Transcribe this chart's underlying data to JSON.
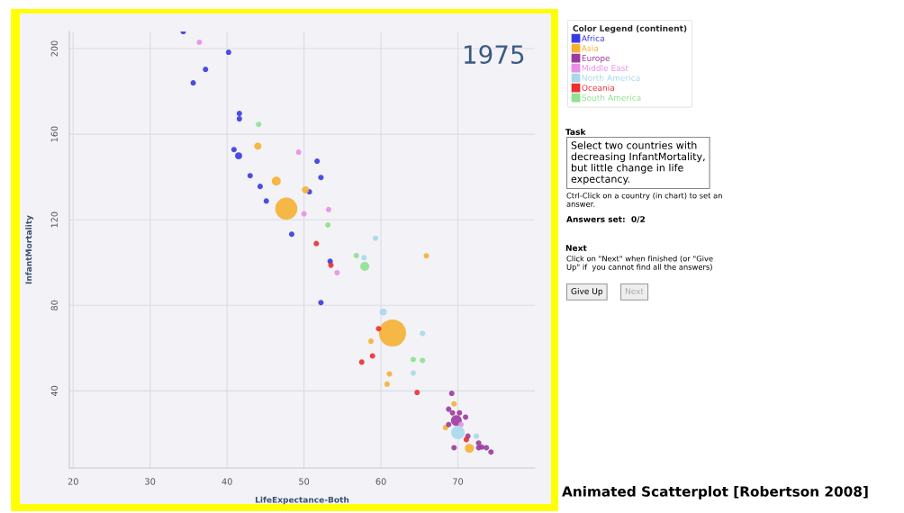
{
  "chart_data": {
    "type": "bubble",
    "xlabel": "LifeExpectance-Both",
    "ylabel": "InfantMortality",
    "legend_title": "Color Legend (continent)",
    "xlim": [
      19.5,
      80
    ],
    "ylim": [
      4,
      208
    ],
    "xticks": [
      20,
      30,
      40,
      50,
      60,
      70
    ],
    "yticks": [
      40,
      80,
      120,
      160,
      200
    ],
    "grid": true,
    "legend": "right",
    "series": [
      {
        "name": "Africa",
        "color": "#3a3ae0",
        "x": [
          34.3,
          40.2,
          37.2,
          35.6,
          41.6,
          41.6,
          40.9,
          41.5,
          43.0,
          44.3,
          45.1,
          51.7,
          52.2,
          50.7,
          48.4,
          53.4,
          52.2
        ],
        "values": [
          208,
          198.3,
          190.3,
          184,
          169.7,
          167.2,
          152.8,
          149.9,
          140.6,
          135.6,
          128.8,
          147.4,
          139.8,
          133.1,
          113.3,
          100.6,
          81.3
        ],
        "sizes": [
          0.04,
          0.04,
          0.04,
          0.04,
          0.04,
          0.04,
          0.04,
          0.07,
          0.04,
          0.04,
          0.04,
          0.04,
          0.04,
          0.04,
          0.04,
          0.04,
          0.04
        ]
      },
      {
        "name": "Asia",
        "color": "#f5b031",
        "x": [
          44.0,
          46.4,
          47.7,
          50.2,
          65.9,
          61.5,
          58.7,
          61.1,
          60.8,
          69.5,
          68.4,
          71.5
        ],
        "values": [
          154.4,
          138.1,
          125.2,
          134,
          103.2,
          67.1,
          63.3,
          48.0,
          43.2,
          34.0,
          22.9,
          13.2
        ],
        "sizes": [
          0.07,
          0.11,
          0.67,
          0.07,
          0.04,
          1,
          0.04,
          0.04,
          0.04,
          0.04,
          0.04,
          0.11
        ]
      },
      {
        "name": "Europe",
        "color": "#9b3a9e",
        "x": [
          69.2,
          68.8,
          69.3,
          70.2,
          71.0,
          69.8,
          68.8,
          71.3,
          72.7,
          72.7,
          73.1,
          73.7,
          74.3,
          69.5
        ],
        "values": [
          38.9,
          31.5,
          29.8,
          29.8,
          27.8,
          26.2,
          24.3,
          18.9,
          15.7,
          13.5,
          13.8,
          13.5,
          11.5,
          13.5
        ],
        "sizes": [
          0.04,
          0.04,
          0.04,
          0.04,
          0.04,
          0.16,
          0.04,
          0.04,
          0.04,
          0.04,
          0.04,
          0.04,
          0.04,
          0.04
        ]
      },
      {
        "name": "Middle East",
        "color": "#e88ee8",
        "x": [
          36.4,
          49.3,
          50.0,
          53.2,
          54.3,
          70.4
        ],
        "values": [
          203,
          151.6,
          122.8,
          124.8,
          95.3,
          24.3
        ],
        "sizes": [
          0.04,
          0.04,
          0.04,
          0.04,
          0.04,
          0.04
        ]
      },
      {
        "name": "North America",
        "color": "#a8d8ea",
        "x": [
          59.3,
          57.8,
          60.3,
          65.4,
          64.2,
          70.0,
          72.4
        ],
        "values": [
          111.4,
          102.3,
          76.9,
          66.9,
          48.4,
          20.6,
          18.9
        ],
        "sizes": [
          0.04,
          0.04,
          0.07,
          0.04,
          0.04,
          0.25,
          0.04
        ]
      },
      {
        "name": "Oceania",
        "color": "#e83030",
        "x": [
          51.6,
          53.5,
          59.7,
          58.9,
          57.5,
          64.7,
          71.1
        ],
        "values": [
          108.9,
          98.8,
          69.1,
          56.4,
          53.5,
          39.3,
          17.3
        ],
        "sizes": [
          0.04,
          0.04,
          0.04,
          0.04,
          0.04,
          0.04,
          0.04
        ]
      },
      {
        "name": "South America",
        "color": "#8fe08f",
        "x": [
          44.1,
          53.1,
          56.8,
          57.9,
          64.2,
          65.4
        ],
        "values": [
          164.6,
          117.6,
          103.3,
          98.2,
          54.7,
          54.3
        ],
        "sizes": [
          0.04,
          0.04,
          0.04,
          0.11,
          0.04,
          0.04
        ]
      }
    ],
    "annotations": [
      "1975",
      "Task",
      "Select two countries with decreasing InfantMortality, but little change in life expectancy.",
      "Ctrl-Click on a country (in chart) to set an answer.",
      "Answers set:  0/2",
      "Next",
      "Click on \"Next\" when finished (or \"Give Up\" if  you cannot find all the answers)",
      "Give Up",
      "Next",
      "Animated Scatterplot [Robertson 2008]"
    ]
  }
}
